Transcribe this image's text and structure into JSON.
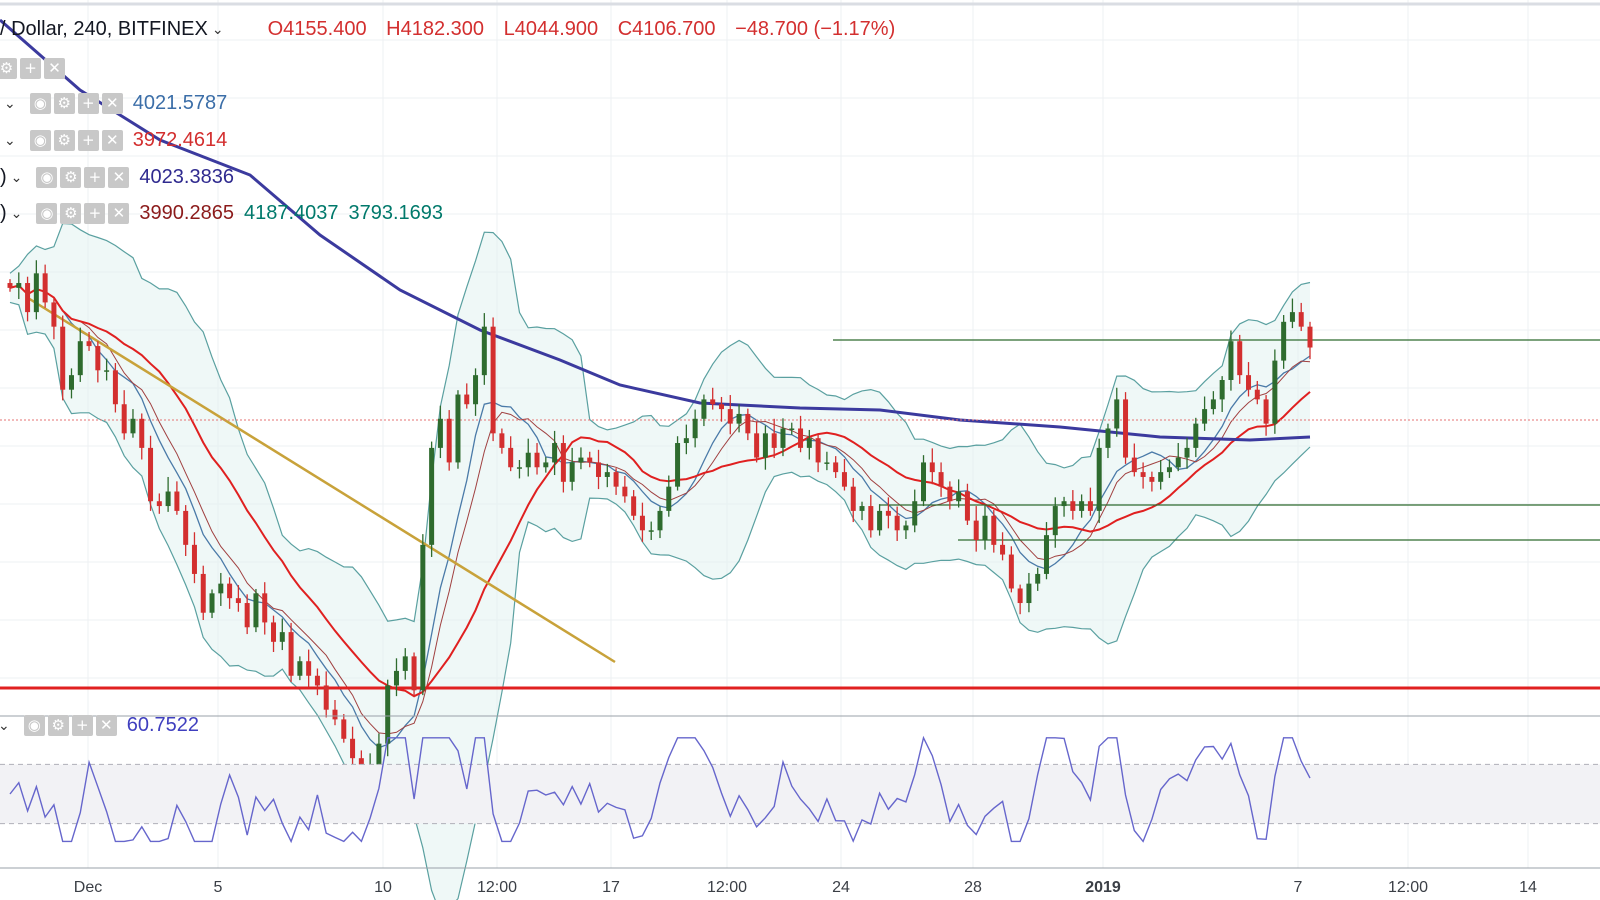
{
  "header": {
    "symbol": "/ Dollar, 240, BITFINEX",
    "open": "O4155.400",
    "high": "H4182.300",
    "low": "L4044.900",
    "close": "C4106.700",
    "change": "−48.700 (−1.17%)"
  },
  "indicators": [
    {
      "name": "",
      "values": [
        {
          "v": "4021.5787",
          "color": "#3b6ea8"
        }
      ]
    },
    {
      "name": "",
      "values": [
        {
          "v": "3972.4614",
          "color": "#d32f2f"
        }
      ]
    },
    {
      "name": ")",
      "values": [
        {
          "v": "4023.3836",
          "color": "#2f2a8f"
        }
      ]
    },
    {
      "name": ")",
      "values": [
        {
          "v": "3990.2865",
          "color": "#8b1a1a"
        },
        {
          "v": "4187.4037",
          "color": "#00796b"
        },
        {
          "v": "3793.1693",
          "color": "#00796b"
        }
      ]
    }
  ],
  "oscillator": {
    "value": "60.7522",
    "color": "#3f3fbf"
  },
  "colors": {
    "up": "#2e6b2e",
    "down": "#d32f2f",
    "ma_slow": "#3b3a9e",
    "ma_mid": "#e02020",
    "ma_fast": "#4a7aa8",
    "ma_fast2": "#a04040",
    "bb": "#5aa0a0",
    "trend": "#c8a23a",
    "support": "#e02020",
    "range": "#2f6b2f",
    "rsi": "#6666cc"
  },
  "chart_data": {
    "type": "candlestick",
    "x_tick_labels": [
      "Dec",
      "5",
      "10",
      "12:00",
      "17",
      "12:00",
      "24",
      "28",
      "2019",
      "7",
      "12:00",
      "14"
    ],
    "y_range": [
      3380,
      4700
    ],
    "last_price": 4106.7,
    "key_close_series": [
      4230,
      4240,
      4180,
      4260,
      4200,
      4150,
      4020,
      4050,
      4120,
      4110,
      4060,
      4060,
      3990,
      3930,
      3960,
      3900,
      3790,
      3780,
      3810,
      3770,
      3700,
      3640,
      3560,
      3600,
      3620,
      3590,
      3580,
      3530,
      3600,
      3540,
      3500,
      3520,
      3430,
      3460,
      3430,
      3410,
      3360,
      3340,
      3300,
      3260,
      3180,
      3240,
      3290,
      3410,
      3440,
      3470,
      3400,
      3700,
      3900,
      3960,
      3870,
      4010,
      3990,
      4050,
      4150,
      3930,
      3900,
      3860,
      3860,
      3890,
      3860,
      3870,
      3910,
      3830,
      3870,
      3880,
      3870,
      3840,
      3850,
      3820,
      3800,
      3760,
      3730,
      3730,
      3770,
      3820,
      3910,
      3920,
      3960,
      4000,
      3990,
      3980,
      3950,
      3970,
      3930,
      3880,
      3930,
      3900,
      3940,
      3940,
      3900,
      3920,
      3870,
      3870,
      3850,
      3820,
      3770,
      3780,
      3730,
      3770,
      3760,
      3730,
      3740,
      3790,
      3870,
      3850,
      3820,
      3790,
      3810,
      3750,
      3710,
      3760,
      3700,
      3680,
      3610,
      3580,
      3620,
      3640,
      3720,
      3780,
      3790,
      3770,
      3790,
      3770,
      3900,
      3940,
      4000,
      3880,
      3850,
      3840,
      3830,
      3850,
      3860,
      3880,
      3900,
      3950,
      3980,
      4000,
      4040,
      4120,
      4050,
      4020,
      4000,
      3950,
      4080,
      4160,
      4180,
      4150,
      4107
    ],
    "horizontal_lines": [
      {
        "name": "support",
        "price": 3420
      },
      {
        "name": "range-top",
        "price": 4235
      },
      {
        "name": "range-bottom",
        "price": 3935
      },
      {
        "name": "range-low",
        "price": 3880
      }
    ],
    "oscillator_range": [
      0,
      100
    ],
    "oscillator_levels": [
      70,
      30
    ],
    "oscillator_last": 60.75
  }
}
